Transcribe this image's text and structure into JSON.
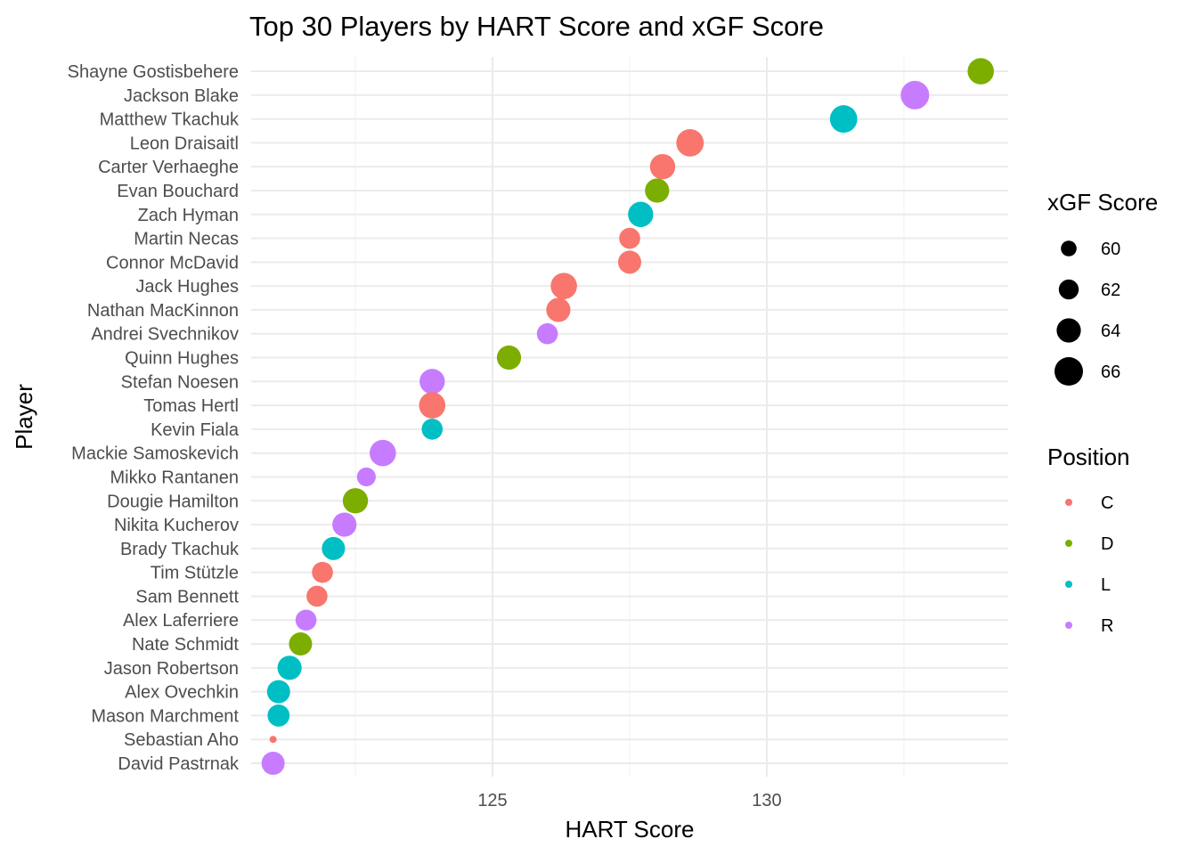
{
  "chart_data": {
    "type": "scatter",
    "title": "Top 30 Players by HART Score and xGF Score",
    "xlabel": "HART Score",
    "ylabel": "Player",
    "xlim": [
      120.6,
      134.4
    ],
    "x_ticks": [
      125,
      130
    ],
    "x_minor_ticks": [
      122.5,
      127.5,
      132.5
    ],
    "grid": true,
    "players": [
      {
        "name": "Shayne Gostisbehere",
        "hart": 133.9,
        "xgf": 65.0,
        "position": "D"
      },
      {
        "name": "Jackson Blake",
        "hart": 132.7,
        "xgf": 66.0,
        "position": "R"
      },
      {
        "name": "Matthew Tkachuk",
        "hart": 131.4,
        "xgf": 65.5,
        "position": "L"
      },
      {
        "name": "Leon Draisaitl",
        "hart": 128.6,
        "xgf": 65.5,
        "position": "C"
      },
      {
        "name": "Carter Verhaeghe",
        "hart": 128.1,
        "xgf": 64.5,
        "position": "C"
      },
      {
        "name": "Evan Bouchard",
        "hart": 128.0,
        "xgf": 64.0,
        "position": "D"
      },
      {
        "name": "Zach Hyman",
        "hart": 127.7,
        "xgf": 64.5,
        "position": "L"
      },
      {
        "name": "Martin Necas",
        "hart": 127.5,
        "xgf": 62.5,
        "position": "C"
      },
      {
        "name": "Connor McDavid",
        "hart": 127.5,
        "xgf": 63.5,
        "position": "C"
      },
      {
        "name": "Jack Hughes",
        "hart": 126.3,
        "xgf": 65.0,
        "position": "C"
      },
      {
        "name": "Nathan MacKinnon",
        "hart": 126.2,
        "xgf": 64.0,
        "position": "C"
      },
      {
        "name": "Andrei Svechnikov",
        "hart": 126.0,
        "xgf": 62.5,
        "position": "R"
      },
      {
        "name": "Quinn Hughes",
        "hart": 125.3,
        "xgf": 64.0,
        "position": "D"
      },
      {
        "name": "Stefan Noesen",
        "hart": 123.9,
        "xgf": 64.5,
        "position": "R"
      },
      {
        "name": "Tomas Hertl",
        "hart": 123.9,
        "xgf": 65.0,
        "position": "C"
      },
      {
        "name": "Kevin Fiala",
        "hart": 123.9,
        "xgf": 62.5,
        "position": "L"
      },
      {
        "name": "Mackie Samoskevich",
        "hart": 123.0,
        "xgf": 65.0,
        "position": "R"
      },
      {
        "name": "Mikko Rantanen",
        "hart": 122.7,
        "xgf": 61.5,
        "position": "R"
      },
      {
        "name": "Dougie Hamilton",
        "hart": 122.5,
        "xgf": 64.5,
        "position": "D"
      },
      {
        "name": "Nikita Kucherov",
        "hart": 122.3,
        "xgf": 64.0,
        "position": "R"
      },
      {
        "name": "Brady Tkachuk",
        "hart": 122.1,
        "xgf": 63.5,
        "position": "L"
      },
      {
        "name": "Tim Stützle",
        "hart": 121.9,
        "xgf": 62.5,
        "position": "C"
      },
      {
        "name": "Sam Bennett",
        "hart": 121.8,
        "xgf": 62.5,
        "position": "C"
      },
      {
        "name": "Alex Laferriere",
        "hart": 121.6,
        "xgf": 62.5,
        "position": "R"
      },
      {
        "name": "Nate Schmidt",
        "hart": 121.5,
        "xgf": 63.5,
        "position": "D"
      },
      {
        "name": "Jason Robertson",
        "hart": 121.3,
        "xgf": 64.0,
        "position": "L"
      },
      {
        "name": "Alex Ovechkin",
        "hart": 121.1,
        "xgf": 63.5,
        "position": "L"
      },
      {
        "name": "Mason Marchment",
        "hart": 121.1,
        "xgf": 63.0,
        "position": "L"
      },
      {
        "name": "Sebastian Aho",
        "hart": 121.0,
        "xgf": 56.0,
        "position": "C"
      },
      {
        "name": "David Pastrnak",
        "hart": 121.0,
        "xgf": 63.5,
        "position": "R"
      }
    ],
    "legend_size": {
      "title": "xGF Score",
      "values": [
        60,
        62,
        64,
        66
      ],
      "labels": [
        "60",
        "62",
        "64",
        "66"
      ]
    },
    "legend_color": {
      "title": "Position",
      "items": [
        {
          "label": "C",
          "color": "#F8766D"
        },
        {
          "label": "D",
          "color": "#7CAE00"
        },
        {
          "label": "L",
          "color": "#00BFC4"
        },
        {
          "label": "R",
          "color": "#C77CFF"
        }
      ]
    },
    "legend_placement": "right"
  }
}
